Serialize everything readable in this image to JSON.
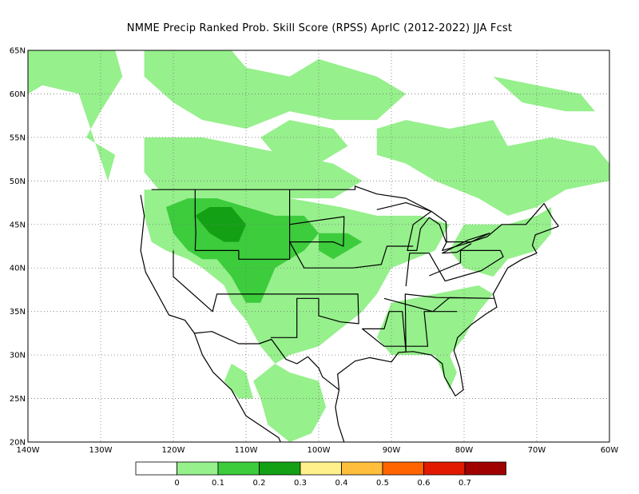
{
  "title": "NMME Precip Ranked Prob. Skill Score (RPSS) AprIC (2012-2022) JJA Fcst",
  "map": {
    "lat_labels": [
      "65N",
      "60N",
      "55N",
      "50N",
      "45N",
      "40N",
      "35N",
      "30N",
      "25N",
      "20N"
    ],
    "lon_labels": [
      "140W",
      "130W",
      "120W",
      "110W",
      "100W",
      "90W",
      "80W",
      "70W",
      "60W"
    ],
    "lat_range": [
      20,
      65
    ],
    "lon_range": [
      -140,
      -60
    ],
    "gridlines": "dotted"
  },
  "legend": {
    "colors": [
      "#ffffff",
      "#96f08c",
      "#3ccc3c",
      "#14a014",
      "#fff08c",
      "#ffbe3c",
      "#ff6400",
      "#e11a00",
      "#a00000"
    ],
    "labels": [
      "0",
      "0.1",
      "0.2",
      "0.3",
      "0.4",
      "0.5",
      "0.6",
      "0.7"
    ]
  },
  "regions": [
    {
      "name": "alaska-canada-west",
      "level": 1,
      "pts": [
        [
          -140,
          65
        ],
        [
          -128,
          65
        ],
        [
          -127,
          62
        ],
        [
          -130,
          58
        ],
        [
          -132,
          55
        ],
        [
          -128,
          53
        ],
        [
          -129,
          50
        ],
        [
          -133,
          60
        ],
        [
          -138,
          61
        ],
        [
          -140,
          60
        ]
      ]
    },
    {
      "name": "canada-north-central",
      "level": 1,
      "pts": [
        [
          -124,
          65
        ],
        [
          -112,
          65
        ],
        [
          -110,
          63
        ],
        [
          -104,
          62
        ],
        [
          -100,
          64
        ],
        [
          -92,
          62
        ],
        [
          -88,
          60
        ],
        [
          -92,
          57
        ],
        [
          -98,
          57
        ],
        [
          -104,
          58
        ],
        [
          -110,
          56
        ],
        [
          -116,
          57
        ],
        [
          -120,
          59
        ],
        [
          -124,
          62
        ]
      ]
    },
    {
      "name": "hudson-east",
      "level": 1,
      "pts": [
        [
          -88,
          57
        ],
        [
          -82,
          56
        ],
        [
          -76,
          57
        ],
        [
          -74,
          54
        ],
        [
          -68,
          55
        ],
        [
          -62,
          54
        ],
        [
          -60,
          52
        ],
        [
          -60,
          50
        ],
        [
          -66,
          49
        ],
        [
          -70,
          47
        ],
        [
          -74,
          46
        ],
        [
          -78,
          48
        ],
        [
          -84,
          50
        ],
        [
          -88,
          52
        ],
        [
          -92,
          53
        ],
        [
          -92,
          56
        ]
      ]
    },
    {
      "name": "labrador",
      "level": 1,
      "pts": [
        [
          -76,
          62
        ],
        [
          -70,
          61
        ],
        [
          -64,
          60
        ],
        [
          -62,
          58
        ],
        [
          -66,
          58
        ],
        [
          -72,
          59
        ]
      ]
    },
    {
      "name": "bc-alberta",
      "level": 1,
      "pts": [
        [
          -124,
          55
        ],
        [
          -116,
          55
        ],
        [
          -110,
          54
        ],
        [
          -104,
          53
        ],
        [
          -98,
          52
        ],
        [
          -94,
          50
        ],
        [
          -98,
          48
        ],
        [
          -104,
          48
        ],
        [
          -112,
          48
        ],
        [
          -118,
          48
        ],
        [
          -122,
          49
        ],
        [
          -124,
          51
        ]
      ]
    },
    {
      "name": "canada-prairies",
      "level": 1,
      "pts": [
        [
          -104,
          57
        ],
        [
          -98,
          56
        ],
        [
          -96,
          54
        ],
        [
          -100,
          52
        ],
        [
          -106,
          53
        ],
        [
          -108,
          55
        ]
      ]
    },
    {
      "name": "northwest-us",
      "level": 1,
      "pts": [
        [
          -124,
          49
        ],
        [
          -118,
          49
        ],
        [
          -111,
          49
        ],
        [
          -104,
          48
        ],
        [
          -97,
          47
        ],
        [
          -92,
          46
        ],
        [
          -86,
          46
        ],
        [
          -82,
          45
        ],
        [
          -84,
          42
        ],
        [
          -90,
          40
        ],
        [
          -92,
          37
        ],
        [
          -94,
          35
        ],
        [
          -97,
          33
        ],
        [
          -100,
          31
        ],
        [
          -104,
          30
        ],
        [
          -106,
          29
        ],
        [
          -108,
          31
        ],
        [
          -110,
          34
        ],
        [
          -112,
          36
        ],
        [
          -113,
          38
        ],
        [
          -116,
          40
        ],
        [
          -118,
          41
        ],
        [
          -121,
          42
        ],
        [
          -123,
          43
        ],
        [
          -124,
          46
        ]
      ]
    },
    {
      "name": "southeast-us",
      "level": 1,
      "pts": [
        [
          -90,
          36
        ],
        [
          -84,
          37
        ],
        [
          -78,
          38
        ],
        [
          -76,
          37
        ],
        [
          -78,
          35
        ],
        [
          -80,
          32
        ],
        [
          -82,
          30
        ],
        [
          -81,
          28
        ],
        [
          -82,
          26
        ],
        [
          -84,
          30
        ],
        [
          -88,
          30
        ],
        [
          -90,
          30
        ],
        [
          -92,
          32
        ]
      ]
    },
    {
      "name": "northeast-us",
      "level": 1,
      "pts": [
        [
          -80,
          45
        ],
        [
          -74,
          45
        ],
        [
          -70,
          46
        ],
        [
          -68,
          47
        ],
        [
          -68,
          44
        ],
        [
          -70,
          42
        ],
        [
          -74,
          41
        ],
        [
          -76,
          39
        ],
        [
          -80,
          40
        ],
        [
          -82,
          42
        ]
      ]
    },
    {
      "name": "mexico",
      "level": 1,
      "pts": [
        [
          -106,
          29
        ],
        [
          -104,
          28
        ],
        [
          -100,
          27
        ],
        [
          -99,
          24
        ],
        [
          -101,
          21
        ],
        [
          -104,
          20
        ],
        [
          -107,
          22
        ],
        [
          -108,
          25
        ],
        [
          -109,
          27
        ]
      ]
    },
    {
      "name": "baja",
      "level": 1,
      "pts": [
        [
          -112,
          29
        ],
        [
          -110,
          28
        ],
        [
          -109,
          25
        ],
        [
          -111,
          25
        ],
        [
          -113,
          27
        ]
      ]
    },
    {
      "name": "mountain-west-core",
      "level": 2,
      "pts": [
        [
          -121,
          47
        ],
        [
          -118,
          48
        ],
        [
          -114,
          48
        ],
        [
          -110,
          47
        ],
        [
          -106,
          46
        ],
        [
          -102,
          46
        ],
        [
          -100,
          44
        ],
        [
          -102,
          42
        ],
        [
          -104,
          41
        ],
        [
          -106,
          40
        ],
        [
          -107,
          38
        ],
        [
          -108,
          36
        ],
        [
          -110,
          36
        ],
        [
          -112,
          39
        ],
        [
          -114,
          41
        ],
        [
          -116,
          41
        ],
        [
          -118,
          42
        ],
        [
          -120,
          44
        ]
      ]
    },
    {
      "name": "central-plains",
      "level": 2,
      "pts": [
        [
          -100,
          44
        ],
        [
          -96,
          44
        ],
        [
          -94,
          43
        ],
        [
          -96,
          42
        ],
        [
          -98,
          41
        ],
        [
          -100,
          42
        ]
      ]
    },
    {
      "name": "idaho-montana",
      "level": 3,
      "pts": [
        [
          -117,
          46
        ],
        [
          -115,
          47
        ],
        [
          -112,
          47
        ],
        [
          -110,
          45
        ],
        [
          -111,
          43
        ],
        [
          -113,
          43
        ],
        [
          -115,
          44
        ]
      ]
    }
  ],
  "borders": [
    {
      "name": "us-canada-border",
      "pts": [
        [
          -123,
          49
        ],
        [
          -95,
          49
        ],
        [
          -95,
          49.4
        ],
        [
          -92,
          48.5
        ],
        [
          -88,
          48
        ],
        [
          -84.5,
          46.5
        ],
        [
          -82.5,
          45.3
        ],
        [
          -82.4,
          43
        ],
        [
          -83,
          42
        ],
        [
          -79,
          43
        ],
        [
          -76.8,
          43.6
        ],
        [
          -74.8,
          45
        ],
        [
          -71.5,
          45
        ],
        [
          -69,
          47.4
        ],
        [
          -67.8,
          45.7
        ],
        [
          -67,
          44.8
        ]
      ]
    },
    {
      "name": "us-mexico-border",
      "pts": [
        [
          -117.1,
          32.5
        ],
        [
          -114.7,
          32.7
        ],
        [
          -111,
          31.3
        ],
        [
          -108.2,
          31.3
        ],
        [
          -106.5,
          31.8
        ],
        [
          -104.5,
          29.5
        ],
        [
          -103,
          29
        ],
        [
          -101.5,
          29.8
        ],
        [
          -100,
          28.5
        ],
        [
          -99.5,
          27.5
        ],
        [
          -97.2,
          26
        ]
      ]
    },
    {
      "name": "west-coast",
      "pts": [
        [
          -124.5,
          48.4
        ],
        [
          -124,
          46
        ],
        [
          -124.5,
          42
        ],
        [
          -123.8,
          39.5
        ],
        [
          -122.5,
          37.5
        ],
        [
          -120.6,
          34.6
        ],
        [
          -118.4,
          34
        ],
        [
          -117.1,
          32.5
        ],
        [
          -116,
          30
        ],
        [
          -114.5,
          28
        ],
        [
          -112,
          26
        ],
        [
          -110,
          23
        ],
        [
          -105.5,
          20.5
        ],
        [
          -105,
          19.5
        ]
      ]
    },
    {
      "name": "gulf-atlantic-coast",
      "pts": [
        [
          -97.2,
          26
        ],
        [
          -97.4,
          27.8
        ],
        [
          -95,
          29.3
        ],
        [
          -93,
          29.7
        ],
        [
          -90,
          29.2
        ],
        [
          -89,
          30.3
        ],
        [
          -87,
          30.4
        ],
        [
          -84.5,
          30
        ],
        [
          -83,
          29
        ],
        [
          -82.7,
          27.5
        ],
        [
          -81.2,
          25.3
        ],
        [
          -80.1,
          26
        ],
        [
          -80.6,
          28.5
        ],
        [
          -81.4,
          30.5
        ],
        [
          -80.9,
          32
        ],
        [
          -79,
          33.5
        ],
        [
          -77,
          34.7
        ],
        [
          -75.5,
          35.5
        ],
        [
          -76,
          37
        ],
        [
          -75,
          38.5
        ],
        [
          -74,
          40
        ],
        [
          -72,
          41
        ],
        [
          -70,
          41.7
        ],
        [
          -70.6,
          42.6
        ],
        [
          -70.2,
          43.8
        ],
        [
          -67,
          44.8
        ]
      ]
    },
    {
      "name": "mexico-gulf-coast",
      "pts": [
        [
          -97.2,
          26
        ],
        [
          -97.7,
          24
        ],
        [
          -97.3,
          22
        ],
        [
          -96.5,
          20
        ]
      ]
    },
    {
      "name": "great-lakes",
      "pts": [
        [
          -92,
          46.7
        ],
        [
          -88,
          47.5
        ],
        [
          -84.5,
          46.5
        ],
        [
          -87,
          45
        ],
        [
          -87.8,
          42
        ],
        [
          -86.5,
          42
        ],
        [
          -86,
          44.5
        ],
        [
          -84.8,
          45.8
        ],
        [
          -83.4,
          45
        ],
        [
          -82.5,
          43
        ],
        [
          -79,
          43
        ],
        [
          -76.5,
          44
        ],
        [
          -79.5,
          43.2
        ],
        [
          -83,
          41.7
        ],
        [
          -81,
          41.8
        ],
        [
          -79,
          42.8
        ]
      ]
    },
    {
      "name": "state-lines-west",
      "pts": [
        [
          -117,
          49
        ],
        [
          -117,
          46
        ],
        [
          -116.9,
          44
        ],
        [
          -117,
          42
        ],
        [
          -114,
          42
        ],
        [
          -111,
          42
        ],
        [
          -111,
          41
        ],
        [
          -104,
          41
        ],
        [
          -104,
          45
        ],
        [
          -104,
          49
        ]
      ]
    },
    {
      "name": "state-lines-mid",
      "pts": [
        [
          -120,
          42
        ],
        [
          -120,
          39
        ],
        [
          -114.6,
          35
        ],
        [
          -114,
          37
        ],
        [
          -109,
          37
        ],
        [
          -103,
          37
        ],
        [
          -94.6,
          37
        ],
        [
          -94.5,
          33.6
        ],
        [
          -97,
          33.8
        ],
        [
          -100,
          34.5
        ],
        [
          -100,
          36.5
        ],
        [
          -103,
          36.5
        ],
        [
          -103,
          32
        ],
        [
          -106.6,
          32
        ]
      ]
    },
    {
      "name": "state-lines-plains",
      "pts": [
        [
          -104,
          45
        ],
        [
          -96.5,
          45.9
        ],
        [
          -96.6,
          42.5
        ],
        [
          -98,
          43
        ],
        [
          -104,
          43
        ],
        [
          -102,
          40
        ],
        [
          -95.3,
          40
        ],
        [
          -91.4,
          40.4
        ],
        [
          -90.6,
          42.5
        ],
        [
          -87,
          42.5
        ]
      ]
    },
    {
      "name": "state-lines-east",
      "pts": [
        [
          -91,
          36.5
        ],
        [
          -84.3,
          35
        ],
        [
          -82,
          36.6
        ],
        [
          -75.9,
          36.5
        ],
        [
          -83.8,
          36.6
        ],
        [
          -88.1,
          37
        ],
        [
          -88,
          30.4
        ],
        [
          -88.5,
          35
        ],
        [
          -90.3,
          35
        ],
        [
          -91,
          33
        ],
        [
          -94,
          33
        ],
        [
          -91,
          31
        ],
        [
          -85,
          31
        ],
        [
          -85.5,
          35
        ],
        [
          -81,
          35
        ],
        [
          -83.4,
          35
        ]
      ]
    },
    {
      "name": "state-lines-northeast",
      "pts": [
        [
          -84.8,
          39.1
        ],
        [
          -80.5,
          40.6
        ],
        [
          -80.5,
          42
        ],
        [
          -75,
          42
        ],
        [
          -74.6,
          41.3
        ],
        [
          -77.6,
          39.7
        ],
        [
          -82.6,
          38.5
        ],
        [
          -84.8,
          41.7
        ],
        [
          -87.5,
          41.7
        ],
        [
          -88,
          37.9
        ]
      ]
    }
  ]
}
